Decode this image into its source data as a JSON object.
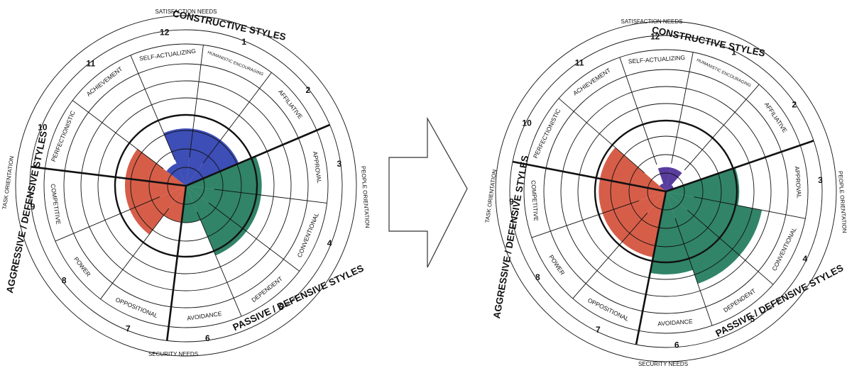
{
  "colors": {
    "constructive": "#2d3fb0",
    "constructive_after": "#4a2c96",
    "passive_defensive": "#1f7a5a",
    "aggressive_defensive": "#d2503a",
    "line": "#111111"
  },
  "circumplex_labels": {
    "constructive_styles": "CONSTRUCTIVE STYLES",
    "passive_defensive_styles": "PASSIVE / DEFENSIVE STYLES",
    "aggressive_defensive_styles": "AGGRESSIVE / DEFENSIVE STYLES",
    "satisfaction_needs": "SATISFACTION NEEDS",
    "security_needs": "SECURITY NEEDS",
    "people_orientation": "PEOPLE ORIENTATION",
    "task_orientation": "TASK ORIENTATION"
  },
  "styles": [
    {
      "number": "12",
      "label": "SELF-ACTUALIZING"
    },
    {
      "number": "1",
      "label": "HUMANISTIC ENCOURAGING"
    },
    {
      "number": "2",
      "label": "AFFILIATIVE"
    },
    {
      "number": "3",
      "label": "APPROVAL"
    },
    {
      "number": "4",
      "label": "CONVENTIONAL"
    },
    {
      "number": "5",
      "label": "DEPENDENT"
    },
    {
      "number": "6",
      "label": "AVOIDANCE"
    },
    {
      "number": "7",
      "label": "OPPOSITIONAL"
    },
    {
      "number": "8",
      "label": "POWER"
    },
    {
      "number": "9",
      "label": "COMPETITIVE"
    },
    {
      "number": "10",
      "label": "PERFECTIONISTIC"
    },
    {
      "number": "11",
      "label": "ACHIEVEMENT"
    }
  ],
  "profiles": {
    "before": [
      0.47,
      0.47,
      0.47,
      0.62,
      0.62,
      0.62,
      0.3,
      0.3,
      0.5,
      0.5,
      0.5,
      0.2
    ],
    "after": [
      0.2,
      0.2,
      0.07,
      0.6,
      0.8,
      0.8,
      0.68,
      0.55,
      0.55,
      0.55,
      0.55,
      0.07
    ]
  }
}
